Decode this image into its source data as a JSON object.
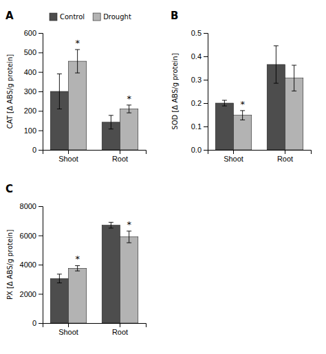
{
  "chart_data": [
    {
      "type": "bar",
      "title": "A",
      "y_label": "CAT [Δ ABS/g protein]",
      "categories": [
        "Shoot",
        "Root"
      ],
      "series": [
        {
          "name": "Control",
          "color": "#4d4d4d",
          "values": [
            300,
            142
          ],
          "errors": [
            90,
            35
          ],
          "significance": [
            null,
            null
          ]
        },
        {
          "name": "Drought",
          "color": "#b3b3b3",
          "values": [
            455,
            210
          ],
          "errors": [
            60,
            20
          ],
          "significance": [
            "*",
            "*"
          ]
        }
      ],
      "ylim": [
        0,
        600
      ],
      "yticks": [
        0,
        100,
        200,
        300,
        400,
        500,
        600
      ],
      "grid": false,
      "legend": "upper left"
    },
    {
      "type": "bar",
      "title": "B",
      "y_label": "SOD [Δ ABS/g protein]",
      "categories": [
        "Shoot",
        "Root"
      ],
      "series": [
        {
          "color": "#4d4d4d",
          "values": [
            0.2,
            0.365
          ],
          "errors": [
            0.012,
            0.08
          ],
          "significance": [
            null,
            null
          ]
        },
        {
          "color": "#b3b3b3",
          "values": [
            0.148,
            0.307
          ],
          "errors": [
            0.02,
            0.055
          ],
          "significance": [
            "*",
            null
          ]
        }
      ],
      "ylim": [
        0.0,
        0.5
      ],
      "yticks": [
        {
          "value": 0.0,
          "label": "0.0"
        },
        0.1,
        0.2,
        0.3,
        0.4,
        0.5
      ],
      "grid": false
    },
    {
      "type": "bar",
      "title": "C",
      "y_label": "PX [Δ ABS/g protein]",
      "categories": [
        "Shoot",
        "Root"
      ],
      "series": [
        {
          "color": "#4d4d4d",
          "values": [
            3050,
            6700
          ],
          "errors": [
            300,
            200
          ],
          "significance": [
            null,
            null
          ]
        },
        {
          "color": "#b3b3b3",
          "values": [
            3750,
            5900
          ],
          "errors": [
            180,
            400
          ],
          "significance": [
            "*",
            "*"
          ]
        }
      ],
      "ylim": [
        0,
        8000
      ],
      "yticks": [
        0,
        2000,
        4000,
        6000,
        8000
      ],
      "grid": false
    }
  ]
}
